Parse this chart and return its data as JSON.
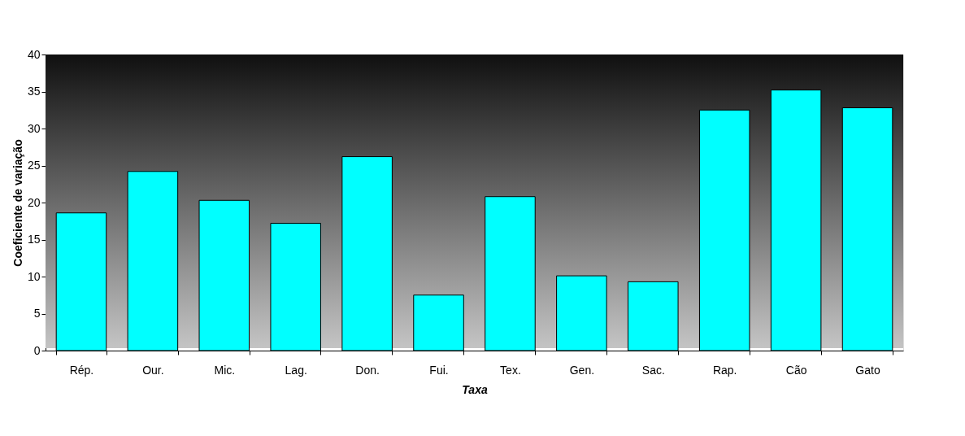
{
  "chart_data": {
    "type": "bar",
    "xlabel": "Taxa",
    "ylabel": "Coeficiente de variação",
    "categories": [
      "Rép.",
      "Our.",
      "Mic.",
      "Lag.",
      "Don.",
      "Fui.",
      "Tex.",
      "Gen.",
      "Sac.",
      "Rap.",
      "Cão",
      "Gato"
    ],
    "values": [
      18.6,
      24.2,
      20.3,
      17.2,
      26.2,
      7.5,
      20.8,
      10.1,
      9.3,
      32.5,
      35.2,
      32.8
    ],
    "color": "#00ffff",
    "ylim": [
      0,
      40
    ],
    "yticks": [
      0,
      5,
      10,
      15,
      20,
      25,
      30,
      35,
      40
    ],
    "grid": false,
    "legend": false
  }
}
